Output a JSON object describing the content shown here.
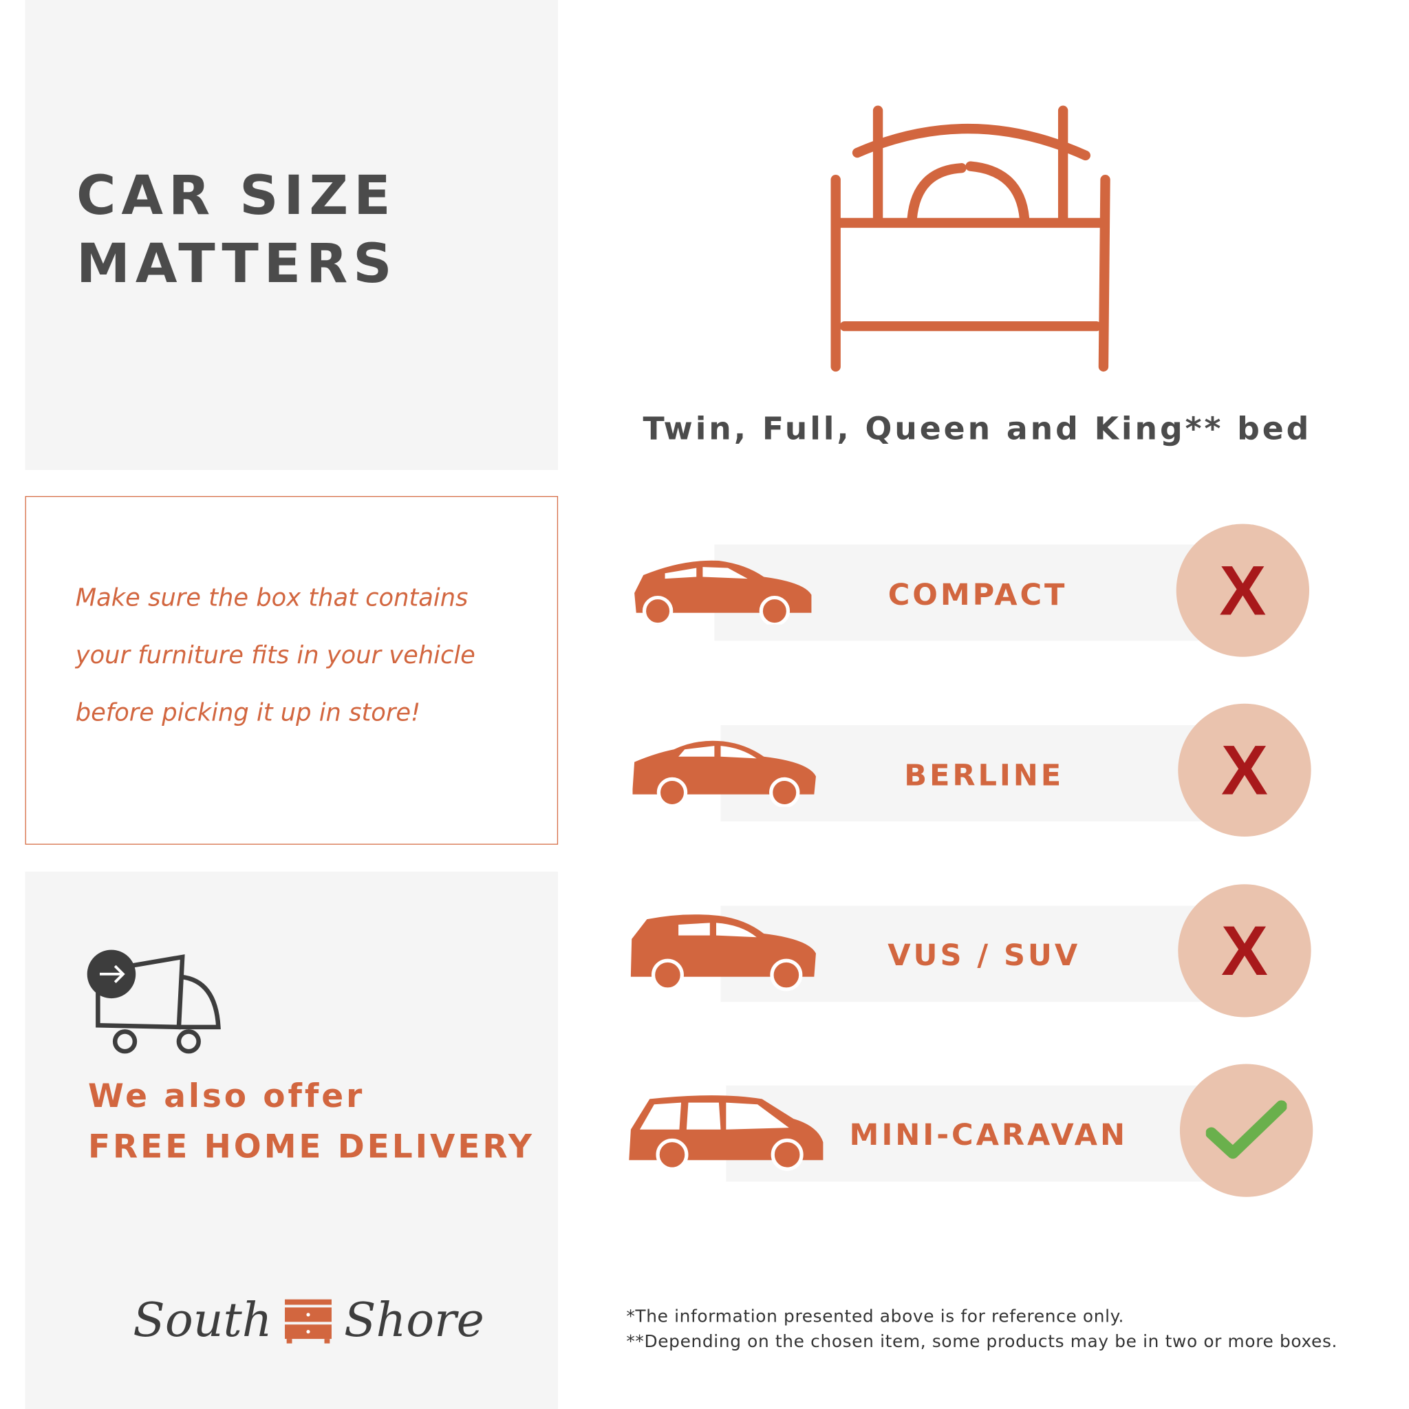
{
  "title": {
    "line1": "CAR SIZE",
    "line2": "MATTERS"
  },
  "note": {
    "line1": "Make sure the box that contains",
    "line2": "your furniture fits in your vehicle",
    "line3": "before picking it up in store!"
  },
  "delivery": {
    "line1": "We also offer",
    "line2": "FREE HOME DELIVERY",
    "icon": "delivery-truck-icon"
  },
  "logo": {
    "left": "South",
    "right": "Shore"
  },
  "bed": {
    "caption": "Twin, Full, Queen and King** bed",
    "icon": "bed-icon"
  },
  "cars": [
    {
      "label": "COMPACT",
      "fits": false,
      "result": "X"
    },
    {
      "label": "BERLINE",
      "fits": false,
      "result": "X"
    },
    {
      "label": "VUS / SUV",
      "fits": false,
      "result": "X"
    },
    {
      "label": "MINI-CARAVAN",
      "fits": true,
      "result": "check"
    }
  ],
  "footnotes": [
    "*The information presented above is for reference only.",
    "**Depending on the chosen item, some products may be in two or more boxes."
  ],
  "colors": {
    "accent": "#d2663f",
    "panel": "#f5f5f5",
    "circle": "#eac3ae",
    "no": "#a8191b",
    "yes": "#6ab04c",
    "text": "#4b4b4b"
  }
}
